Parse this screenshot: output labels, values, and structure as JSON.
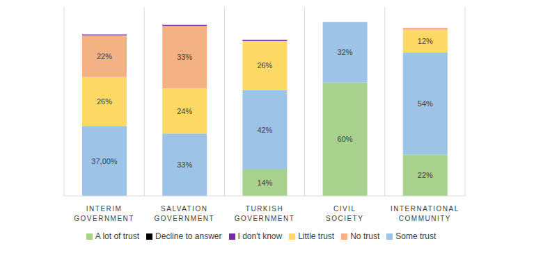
{
  "chart_data": {
    "type": "bar",
    "stacked": true,
    "data_labels": true,
    "tick_labels": "x",
    "legend": "bottom",
    "categories": [
      "INTERIM GOVERNMENT",
      "SALVATION GOVERNMENT",
      "TURKISH GOVERNMENT",
      "CIVIL SOCIETY",
      "INTERNATIONAL COMMUNITY"
    ],
    "ylim": [
      0,
      100
    ],
    "series": [
      {
        "name": "A lot of trust",
        "color": "#a9d18e",
        "values": [
          0,
          0,
          14,
          60,
          22
        ],
        "value_labels": [
          null,
          null,
          "14%",
          "60%",
          "22%"
        ]
      },
      {
        "name": "Some trust",
        "color": "#9dc3e6",
        "values": [
          37,
          33,
          42,
          32,
          54
        ],
        "value_labels": [
          "37,00%",
          "33%",
          "42%",
          "32%",
          "54%"
        ]
      },
      {
        "name": "Little trust",
        "color": "#ffd966",
        "values": [
          26,
          24,
          26,
          0,
          12
        ],
        "value_labels": [
          "26%",
          "24%",
          "26%",
          null,
          "12%"
        ]
      },
      {
        "name": "No trust",
        "color": "#f4b183",
        "values": [
          22,
          33,
          0,
          0,
          1
        ],
        "value_labels": [
          "22%",
          "33%",
          null,
          null,
          null
        ]
      },
      {
        "name": "I don't know",
        "color": "#7030a0",
        "values": [
          0.5,
          0.5,
          0.5,
          0,
          0
        ],
        "value_labels": [
          null,
          null,
          null,
          null,
          null
        ]
      },
      {
        "name": "Decline to answer",
        "color": "#000000",
        "values": [
          0,
          0,
          0,
          0,
          0
        ],
        "value_labels": [
          null,
          null,
          null,
          null,
          null
        ]
      }
    ]
  }
}
